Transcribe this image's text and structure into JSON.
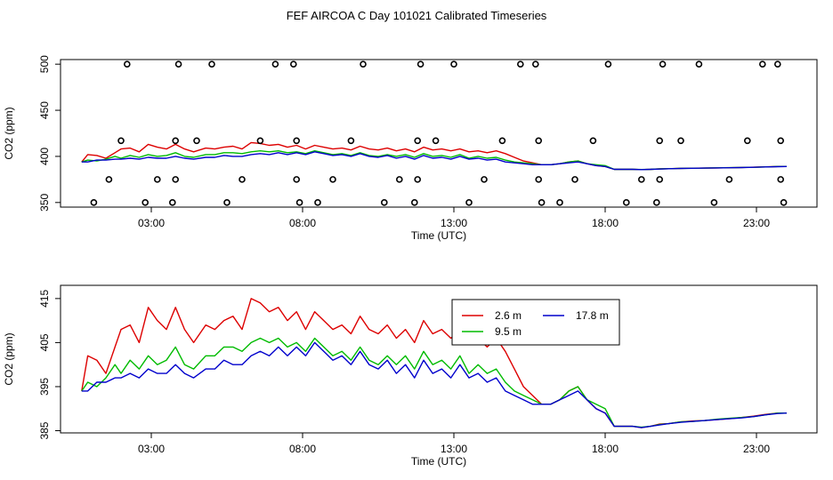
{
  "title": "FEF AIRCOA C  Day 101021  Calibrated Timeseries",
  "colors": {
    "s1": "#dd0000",
    "s2": "#00bb00",
    "s3": "#0000cc"
  },
  "chart_data": [
    {
      "type": "scatter+line",
      "xlabel": "Time (UTC)",
      "ylabel": "CO2 (ppm)",
      "xlim": [
        0,
        25
      ],
      "ylim": [
        345,
        505
      ],
      "xticks": [
        3,
        8,
        13,
        18,
        23
      ],
      "xtick_labels": [
        "03:00",
        "08:00",
        "13:00",
        "18:00",
        "23:00"
      ],
      "yticks": [
        350,
        400,
        450,
        500
      ],
      "ytick_labels": [
        "350",
        "400",
        "450",
        "500"
      ],
      "reference_points": [
        [
          1.1,
          350
        ],
        [
          1.6,
          375
        ],
        [
          2.2,
          500
        ],
        [
          2.0,
          417
        ],
        [
          2.8,
          350
        ],
        [
          3.2,
          375
        ],
        [
          3.7,
          350
        ],
        [
          3.8,
          375
        ],
        [
          3.8,
          417
        ],
        [
          3.9,
          500
        ],
        [
          4.5,
          417
        ],
        [
          5.0,
          500
        ],
        [
          5.5,
          350
        ],
        [
          6.0,
          375
        ],
        [
          6.6,
          417
        ],
        [
          7.1,
          500
        ],
        [
          7.7,
          500
        ],
        [
          7.8,
          417
        ],
        [
          7.8,
          375
        ],
        [
          7.9,
          350
        ],
        [
          8.5,
          350
        ],
        [
          9.0,
          375
        ],
        [
          9.6,
          417
        ],
        [
          10.0,
          500
        ],
        [
          10.7,
          350
        ],
        [
          11.2,
          375
        ],
        [
          11.7,
          350
        ],
        [
          11.8,
          375
        ],
        [
          11.8,
          417
        ],
        [
          11.9,
          500
        ],
        [
          12.4,
          417
        ],
        [
          13.0,
          500
        ],
        [
          13.5,
          350
        ],
        [
          14.0,
          375
        ],
        [
          14.6,
          417
        ],
        [
          15.2,
          500
        ],
        [
          15.7,
          500
        ],
        [
          15.8,
          417
        ],
        [
          15.8,
          375
        ],
        [
          15.9,
          350
        ],
        [
          16.5,
          350
        ],
        [
          17.0,
          375
        ],
        [
          17.6,
          417
        ],
        [
          18.1,
          500
        ],
        [
          18.7,
          350
        ],
        [
          19.2,
          375
        ],
        [
          19.7,
          350
        ],
        [
          19.8,
          375
        ],
        [
          19.8,
          417
        ],
        [
          19.9,
          500
        ],
        [
          20.5,
          417
        ],
        [
          21.1,
          500
        ],
        [
          21.6,
          350
        ],
        [
          22.1,
          375
        ],
        [
          22.7,
          417
        ],
        [
          23.2,
          500
        ],
        [
          23.7,
          500
        ],
        [
          23.8,
          417
        ],
        [
          23.8,
          375
        ],
        [
          23.9,
          350
        ]
      ],
      "series": [
        {
          "name": "2.6 m",
          "color_key": "s1"
        },
        {
          "name": "9.5 m",
          "color_key": "s2"
        },
        {
          "name": "17.8 m",
          "color_key": "s3"
        }
      ]
    },
    {
      "type": "line",
      "xlabel": "Time (UTC)",
      "ylabel": "CO2 (ppm)",
      "xlim": [
        0,
        25
      ],
      "ylim": [
        384.5,
        418
      ],
      "xticks": [
        3,
        8,
        13,
        18,
        23
      ],
      "xtick_labels": [
        "03:00",
        "08:00",
        "13:00",
        "18:00",
        "23:00"
      ],
      "yticks": [
        385,
        395,
        405,
        415
      ],
      "ytick_labels": [
        "385",
        "395",
        "405",
        "415"
      ],
      "legend": {
        "position": "top-right",
        "entries": [
          "2.6 m",
          "9.5 m",
          "17.8 m"
        ]
      },
      "series": [
        {
          "name": "2.6 m",
          "color_key": "s1",
          "x": [
            0.7,
            0.9,
            1.2,
            1.5,
            1.8,
            2.0,
            2.3,
            2.6,
            2.9,
            3.2,
            3.5,
            3.8,
            4.1,
            4.4,
            4.8,
            5.1,
            5.4,
            5.7,
            6.0,
            6.3,
            6.6,
            6.9,
            7.2,
            7.5,
            7.8,
            8.1,
            8.4,
            8.7,
            9.0,
            9.3,
            9.6,
            9.9,
            10.2,
            10.5,
            10.8,
            11.1,
            11.4,
            11.7,
            12.0,
            12.3,
            12.6,
            12.9,
            13.2,
            13.5,
            13.8,
            14.1,
            14.4,
            14.7,
            15.0,
            15.3,
            15.6,
            15.9,
            16.2,
            16.5,
            16.8,
            17.1,
            17.4,
            17.7,
            18.0,
            18.3,
            18.6,
            18.9,
            19.2,
            19.5,
            19.8,
            20.1,
            20.5,
            20.9,
            21.3,
            21.7,
            22.1,
            22.5,
            22.9,
            23.3,
            23.7,
            24.0
          ],
          "y": [
            394,
            402,
            401,
            398,
            404,
            408,
            409,
            405,
            413,
            410,
            408,
            413,
            408,
            405,
            409,
            408,
            410,
            411,
            408,
            415,
            414,
            412,
            413,
            410,
            412,
            408,
            412,
            410,
            408,
            409,
            407,
            411,
            408,
            407,
            409,
            406,
            408,
            405,
            410,
            407,
            408,
            406,
            408,
            405,
            406,
            404,
            406,
            403,
            399,
            395,
            393,
            391,
            391,
            392,
            394,
            395,
            392,
            390,
            389,
            386,
            386,
            386,
            385.7,
            386,
            386.5,
            386.6,
            387,
            387.2,
            387.3,
            387.5,
            387.7,
            388,
            388.3,
            388.7,
            389,
            389
          ]
        },
        {
          "name": "9.5 m",
          "color_key": "s2",
          "x": [
            0.7,
            0.9,
            1.2,
            1.5,
            1.8,
            2.0,
            2.3,
            2.6,
            2.9,
            3.2,
            3.5,
            3.8,
            4.1,
            4.4,
            4.8,
            5.1,
            5.4,
            5.7,
            6.0,
            6.3,
            6.6,
            6.9,
            7.2,
            7.5,
            7.8,
            8.1,
            8.4,
            8.7,
            9.0,
            9.3,
            9.6,
            9.9,
            10.2,
            10.5,
            10.8,
            11.1,
            11.4,
            11.7,
            12.0,
            12.3,
            12.6,
            12.9,
            13.2,
            13.5,
            13.8,
            14.1,
            14.4,
            14.7,
            15.0,
            15.3,
            15.6,
            15.9,
            16.2,
            16.5,
            16.8,
            17.1,
            17.4,
            17.7,
            18.0,
            18.3,
            18.6,
            18.9,
            19.2,
            19.5,
            19.8,
            20.1,
            20.5,
            20.9,
            21.3,
            21.7,
            22.1,
            22.5,
            22.9,
            23.3,
            23.7,
            24.0
          ],
          "y": [
            394,
            396,
            395,
            397,
            400,
            398,
            401,
            399,
            402,
            400,
            401,
            404,
            400,
            399,
            402,
            402,
            404,
            404,
            403,
            405,
            406,
            405,
            406,
            404,
            405,
            403,
            406,
            404,
            402,
            403,
            401,
            404,
            401,
            400,
            402,
            400,
            402,
            399,
            403,
            400,
            401,
            399,
            402,
            398,
            400,
            398,
            399,
            396,
            394,
            393,
            392,
            391,
            391,
            392,
            394,
            395,
            392,
            391,
            390,
            386,
            386,
            386,
            385.8,
            386,
            386.4,
            386.6,
            387,
            387.1,
            387.3,
            387.6,
            387.8,
            388,
            388.2,
            388.6,
            389,
            389
          ]
        },
        {
          "name": "17.8 m",
          "color_key": "s3",
          "x": [
            0.7,
            0.9,
            1.2,
            1.5,
            1.8,
            2.0,
            2.3,
            2.6,
            2.9,
            3.2,
            3.5,
            3.8,
            4.1,
            4.4,
            4.8,
            5.1,
            5.4,
            5.7,
            6.0,
            6.3,
            6.6,
            6.9,
            7.2,
            7.5,
            7.8,
            8.1,
            8.4,
            8.7,
            9.0,
            9.3,
            9.6,
            9.9,
            10.2,
            10.5,
            10.8,
            11.1,
            11.4,
            11.7,
            12.0,
            12.3,
            12.6,
            12.9,
            13.2,
            13.5,
            13.8,
            14.1,
            14.4,
            14.7,
            15.0,
            15.3,
            15.6,
            15.9,
            16.2,
            16.5,
            16.8,
            17.1,
            17.4,
            17.7,
            18.0,
            18.3,
            18.6,
            18.9,
            19.2,
            19.5,
            19.8,
            20.1,
            20.5,
            20.9,
            21.3,
            21.7,
            22.1,
            22.5,
            22.9,
            23.3,
            23.7,
            24.0
          ],
          "y": [
            394,
            394,
            396,
            396,
            397,
            397,
            398,
            397,
            399,
            398,
            398,
            400,
            398,
            397,
            399,
            399,
            401,
            400,
            400,
            402,
            403,
            402,
            404,
            402,
            404,
            402,
            405,
            403,
            401,
            402,
            400,
            403,
            400,
            399,
            401,
            398,
            400,
            397,
            401,
            398,
            399,
            397,
            400,
            397,
            398,
            396,
            397,
            394,
            393,
            392,
            391,
            391,
            391,
            392,
            393,
            394,
            392,
            390,
            389,
            386,
            386,
            386,
            385.7,
            386,
            386.3,
            386.6,
            386.9,
            387.1,
            387.3,
            387.5,
            387.7,
            387.9,
            388.2,
            388.6,
            388.9,
            389
          ]
        }
      ]
    }
  ]
}
